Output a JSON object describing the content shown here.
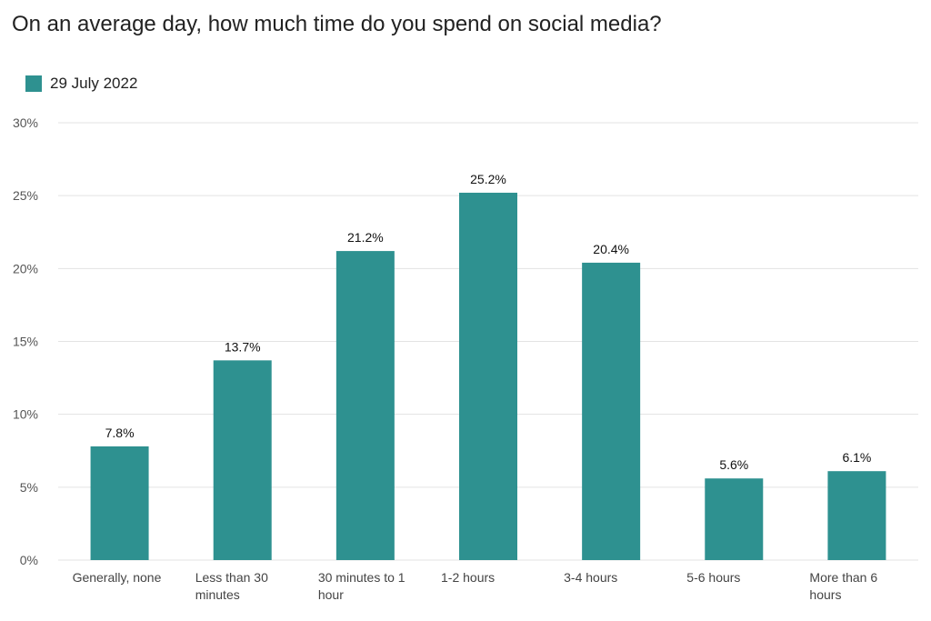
{
  "chart_data": {
    "type": "bar",
    "title": "On an average day, how much time do you spend on social media?",
    "categories": [
      "Generally, none",
      "Less than 30 minutes",
      "30 minutes to 1 hour",
      "1-2 hours",
      "3-4 hours",
      "5-6 hours",
      "More than 6 hours"
    ],
    "series": [
      {
        "name": "29 July 2022",
        "values": [
          7.8,
          13.7,
          21.2,
          25.2,
          20.4,
          5.6,
          6.1
        ],
        "value_labels": [
          "7.8%",
          "13.7%",
          "21.2%",
          "25.2%",
          "20.4%",
          "5.6%",
          "6.1%"
        ],
        "color": "#2e9190"
      }
    ],
    "ylim": [
      0,
      30
    ],
    "yticks": [
      0,
      5,
      10,
      15,
      20,
      25,
      30
    ],
    "ytick_labels": [
      "0%",
      "5%",
      "10%",
      "15%",
      "20%",
      "25%",
      "30%"
    ],
    "xlabel": "",
    "ylabel": "",
    "grid": true,
    "legend_position": "top-left",
    "gridline_color": "#e3e3e3"
  }
}
